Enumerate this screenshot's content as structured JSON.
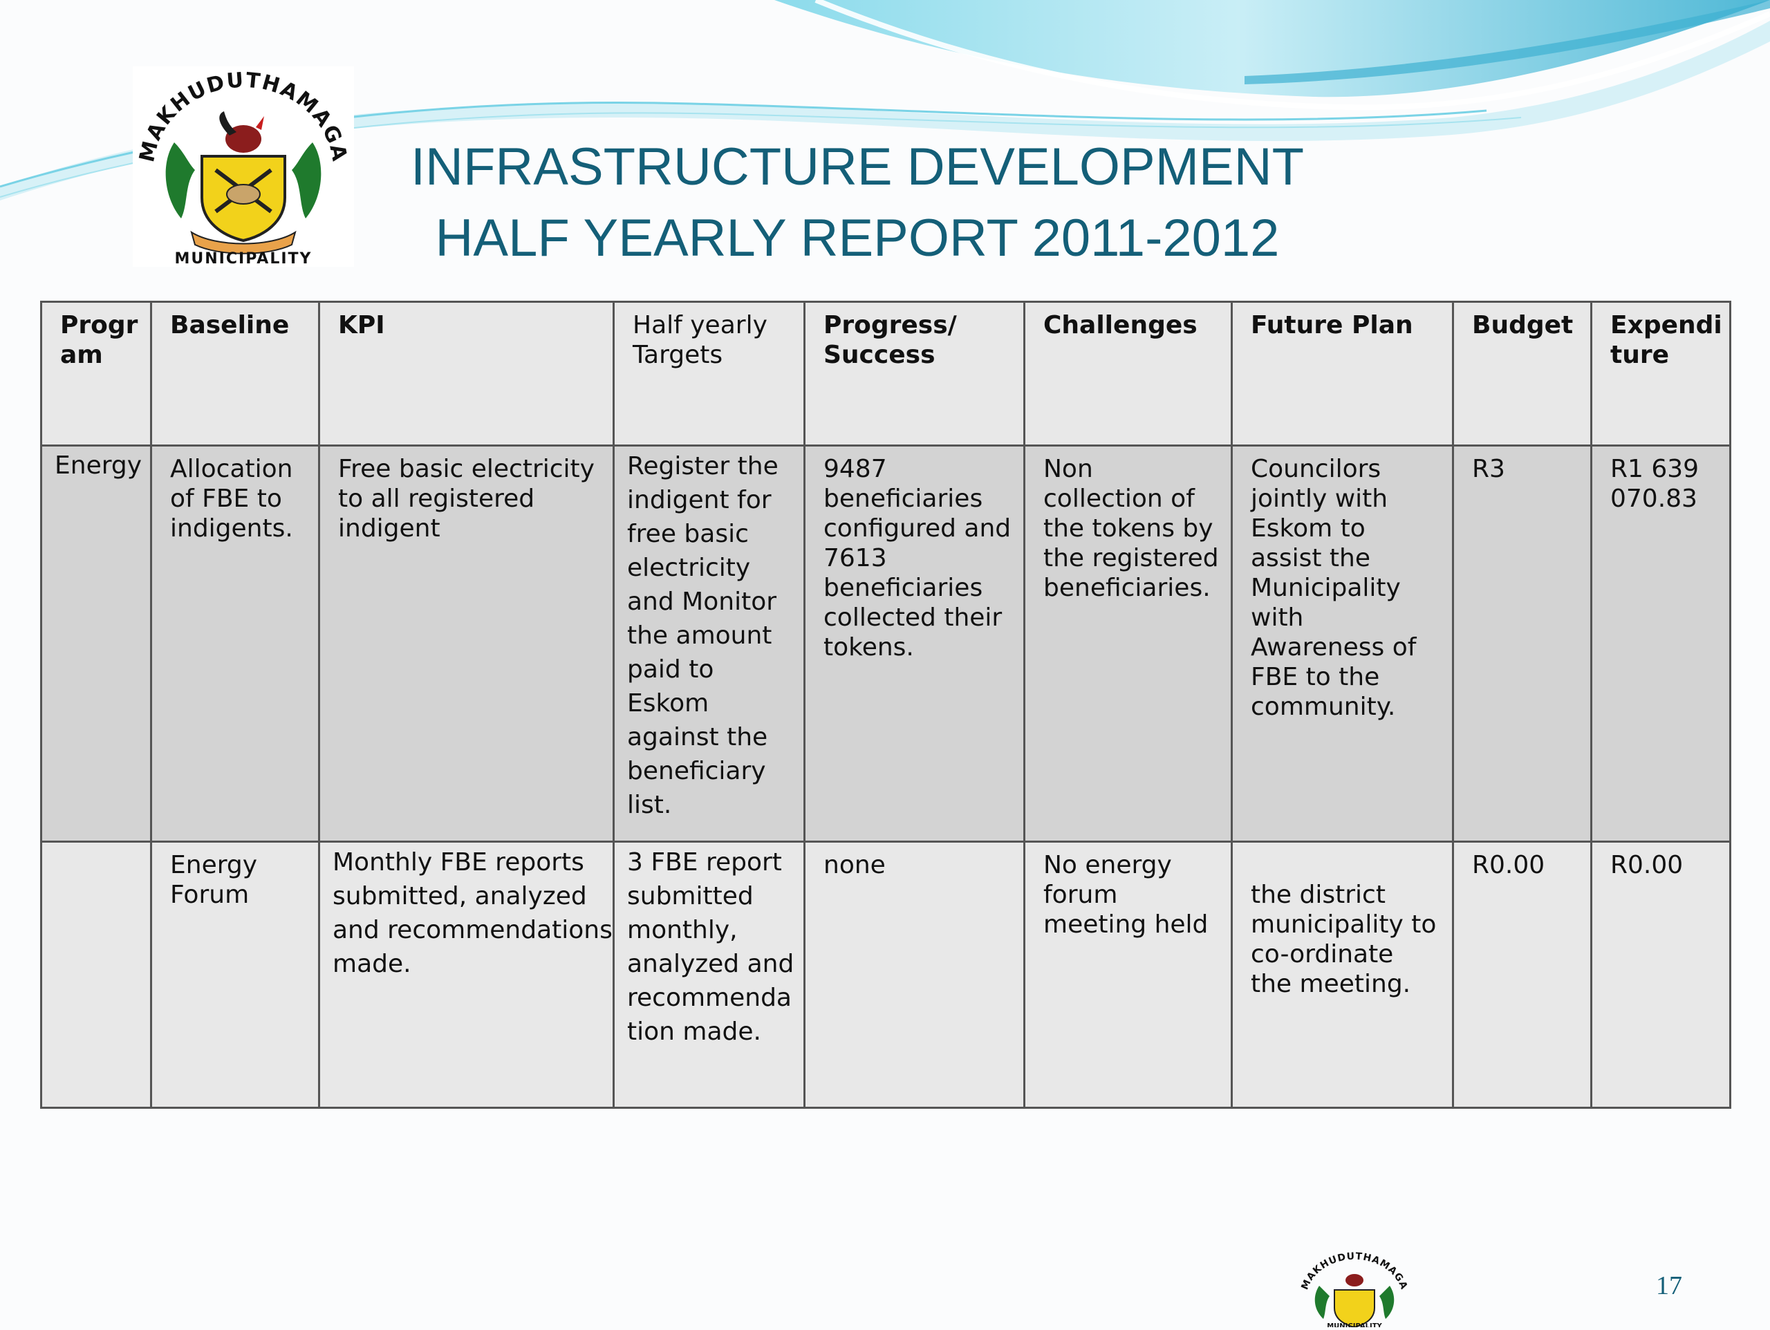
{
  "slide": {
    "title_line1": "INFRASTRUCTURE DEVELOPMENT",
    "title_line2": "HALF YEARLY REPORT 2011-2012",
    "page_number": "17"
  },
  "logo": {
    "arc_text": "MAKHUDUTHAMAGA",
    "bottom_text": "MUNICIPALITY"
  },
  "table": {
    "headers": [
      "Progr\nam",
      "Baseline",
      "KPI",
      "Half yearly\nTargets",
      "Progress/\nSuccess",
      "Challenges",
      "Future Plan",
      "Budget",
      "Expendi\nture"
    ],
    "rows": [
      {
        "program": "Energy",
        "baseline": "Allocation\nof FBE to\nindigents.",
        "kpi": "Free basic electricity\nto all registered\nindigent",
        "targets": "Register the\nindigent for\nfree basic\nelectricity\nand Monitor\nthe amount\npaid to\nEskom\nagainst the\nbeneficiary\nlist.",
        "progress": "9487\nbeneficiaries\nconfigured and\n7613\nbeneficiaries\ncollected their\ntokens.",
        "challenges": "Non\ncollection of\nthe tokens by\nthe registered\nbeneficiaries.",
        "future_plan": "Councilors\njointly with\nEskom to\nassist the\nMunicipality\nwith\nAwareness of\nFBE to the\ncommunity.",
        "budget": "R3",
        "expenditure": "R1 639\n070.83"
      },
      {
        "program": "",
        "baseline": "Energy\nForum",
        "kpi": "Monthly FBE reports\nsubmitted, analyzed\nand recommendations\nmade.",
        "targets": "3 FBE report\nsubmitted\nmonthly,\nanalyzed and\nrecommenda\ntion made.",
        "progress": "none",
        "challenges": "No energy\nforum\nmeeting held",
        "future_plan": "\nthe district\nmunicipality to\nco-ordinate\nthe meeting.",
        "budget": "R0.00",
        "expenditure": "R0.00"
      }
    ]
  }
}
